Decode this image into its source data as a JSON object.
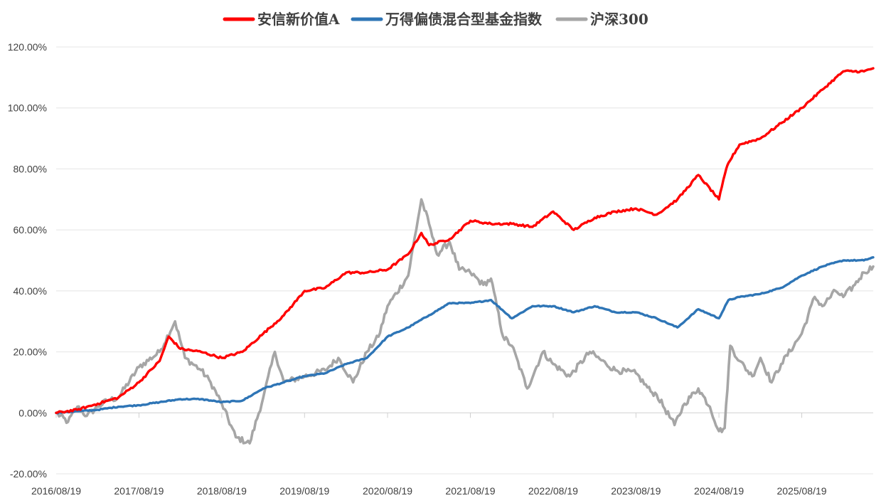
{
  "chart_data": {
    "type": "line",
    "title": "",
    "xlabel": "",
    "ylabel": "",
    "ylim": [
      -20,
      120
    ],
    "y_ticks": [
      -20,
      0,
      20,
      40,
      60,
      80,
      100,
      120
    ],
    "y_tick_labels": [
      "-20.00%",
      "0.00%",
      "20.00%",
      "40.00%",
      "60.00%",
      "80.00%",
      "100.00%",
      "120.00%"
    ],
    "x_tick_labels": [
      "2016/08/19",
      "2017/08/19",
      "2018/08/19",
      "2019/08/19",
      "2020/08/19",
      "2021/08/19",
      "2022/08/19",
      "2023/08/19",
      "2024/08/19",
      "2025/08/19"
    ],
    "xlim": [
      "2016/08/19",
      "2026/06/30"
    ],
    "grid": "horizontal",
    "legend_position": "top-center",
    "series": [
      {
        "name": "安信新价值A",
        "color": "#ff0000",
        "x": [
          "2016/08/19",
          "2016/11/20",
          "2017/02/18",
          "2017/05/20",
          "2017/08/19",
          "2017/11/18",
          "2017/12/28",
          "2018/02/18",
          "2018/05/20",
          "2018/08/19",
          "2018/11/18",
          "2019/02/18",
          "2019/05/20",
          "2019/08/19",
          "2019/11/18",
          "2020/02/18",
          "2020/05/20",
          "2020/08/19",
          "2020/11/18",
          "2021/01/15",
          "2021/02/18",
          "2021/05/20",
          "2021/08/19",
          "2021/11/18",
          "2022/02/18",
          "2022/05/20",
          "2022/08/19",
          "2022/11/18",
          "2023/02/18",
          "2023/05/20",
          "2023/08/19",
          "2023/11/18",
          "2024/02/18",
          "2024/05/20",
          "2024/08/19",
          "2024/09/20",
          "2024/09/30",
          "2024/11/18",
          "2025/02/18",
          "2025/05/20",
          "2025/08/19",
          "2025/11/18",
          "2026/02/18",
          "2026/05/20",
          "2026/06/30"
        ],
        "values": [
          0,
          1,
          3,
          5,
          10,
          17,
          25,
          21,
          20,
          18,
          20,
          26,
          32,
          40,
          41,
          46,
          46,
          47,
          52,
          59,
          55,
          57,
          63,
          62,
          62,
          61,
          66,
          60,
          64,
          66,
          67,
          65,
          70,
          78,
          70,
          80,
          82,
          88,
          90,
          95,
          100,
          106,
          112,
          112,
          113
        ]
      },
      {
        "name": "万得偏债混合型基金指数",
        "color": "#2e75b6",
        "x": [
          "2016/08/19",
          "2016/11/20",
          "2017/02/18",
          "2017/05/20",
          "2017/08/19",
          "2017/11/18",
          "2018/02/18",
          "2018/05/20",
          "2018/08/19",
          "2018/11/18",
          "2019/02/18",
          "2019/05/20",
          "2019/08/19",
          "2019/11/18",
          "2020/02/18",
          "2020/05/20",
          "2020/08/19",
          "2020/11/18",
          "2021/02/18",
          "2021/05/20",
          "2021/08/19",
          "2021/11/18",
          "2022/02/18",
          "2022/05/20",
          "2022/08/19",
          "2022/11/18",
          "2023/02/18",
          "2023/05/20",
          "2023/08/19",
          "2023/11/18",
          "2024/02/18",
          "2024/05/20",
          "2024/08/19",
          "2024/09/30",
          "2024/11/18",
          "2025/02/18",
          "2025/05/20",
          "2025/08/19",
          "2025/11/18",
          "2026/02/18",
          "2026/05/20",
          "2026/06/30"
        ],
        "values": [
          0,
          0.5,
          1,
          2,
          2.5,
          3.5,
          4.5,
          4.5,
          3.5,
          4,
          8,
          10,
          12,
          13,
          16,
          18,
          25,
          28,
          32,
          36,
          36,
          37,
          31,
          35,
          35,
          33,
          35,
          33,
          33,
          31,
          28,
          34,
          31,
          37,
          38,
          39,
          41,
          45,
          48,
          50,
          50,
          51
        ]
      },
      {
        "name": "沪深300",
        "color": "#a6a6a6",
        "x": [
          "2016/08/19",
          "2016/10/10",
          "2016/11/20",
          "2017/01/01",
          "2017/02/18",
          "2017/04/01",
          "2017/05/20",
          "2017/08/19",
          "2017/11/18",
          "2018/01/25",
          "2018/03/10",
          "2018/05/20",
          "2018/07/01",
          "2018/08/19",
          "2018/10/20",
          "2018/12/20",
          "2019/02/18",
          "2019/04/10",
          "2019/05/20",
          "2019/08/19",
          "2019/11/18",
          "2020/01/15",
          "2020/03/20",
          "2020/05/20",
          "2020/07/10",
          "2020/08/19",
          "2020/11/18",
          "2021/01/15",
          "2021/02/18",
          "2021/03/25",
          "2021/05/20",
          "2021/07/01",
          "2021/08/19",
          "2021/10/15",
          "2021/11/18",
          "2022/01/10",
          "2022/02/18",
          "2022/04/27",
          "2022/07/05",
          "2022/08/19",
          "2022/10/31",
          "2023/01/28",
          "2023/04/10",
          "2023/05/20",
          "2023/08/19",
          "2023/10/23",
          "2023/11/18",
          "2024/02/05",
          "2024/03/20",
          "2024/05/20",
          "2024/07/10",
          "2024/08/19",
          "2024/09/13",
          "2024/10/08",
          "2024/11/18",
          "2025/01/13",
          "2025/02/18",
          "2025/04/08",
          "2025/05/20",
          "2025/08/19",
          "2025/10/15",
          "2025/11/18",
          "2026/01/15",
          "2026/02/18",
          "2026/04/10",
          "2026/05/20",
          "2026/06/30"
        ],
        "values": [
          0,
          -3,
          2,
          -1,
          2,
          4,
          5,
          15,
          20,
          30,
          18,
          14,
          10,
          3,
          -8,
          -10,
          5,
          20,
          10,
          12,
          14,
          18,
          10,
          20,
          25,
          35,
          45,
          70,
          62,
          52,
          56,
          47,
          46,
          42,
          44,
          25,
          22,
          8,
          20,
          16,
          12,
          20,
          16,
          14,
          13,
          7,
          6,
          -4,
          3,
          8,
          2,
          -6,
          -5,
          22,
          17,
          12,
          18,
          10,
          16,
          26,
          38,
          35,
          40,
          38,
          42,
          46,
          48
        ]
      }
    ]
  }
}
